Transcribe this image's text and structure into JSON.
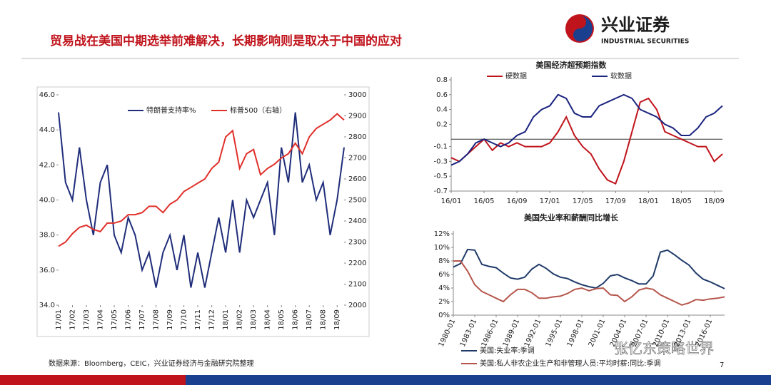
{
  "header": {
    "title": "贸易战在美国中期选举前难解决，长期影响则是取决于中国的应对",
    "logo_cn": "兴业证券",
    "logo_en": "INDUSTRIAL SECURITIES"
  },
  "footer": {
    "source": "数据来源：Bloomberg，CEIC，兴业证券经济与金融研究院整理",
    "watermark": "张忆东策略世界",
    "page": "7"
  },
  "chart_data": [
    {
      "type": "line",
      "categories": [
        "17/01",
        null,
        "17/02",
        null,
        "17/03",
        null,
        "17/04",
        null,
        "17/05",
        null,
        "17/06",
        null,
        "17/07",
        null,
        "17/08",
        null,
        "17/09",
        null,
        "17/10",
        null,
        "17/11",
        null,
        "17/12",
        null,
        "18/01",
        null,
        "18/02",
        null,
        "18/03",
        null,
        "18/04",
        null,
        "18/05",
        null,
        "18/06",
        null,
        "18/07",
        null,
        "18/08",
        null,
        "18/09",
        null
      ],
      "series": [
        {
          "name": "特朗普支持率%",
          "color": "#1f2d7a",
          "values": [
            45,
            41,
            40,
            43,
            40,
            38,
            41,
            42,
            38,
            37,
            39,
            38,
            36,
            37,
            35,
            37,
            38,
            36,
            38,
            35,
            37,
            35,
            37,
            39,
            37,
            40,
            37,
            40,
            39,
            40,
            41,
            38,
            43,
            41,
            45,
            41,
            42,
            40,
            41,
            38,
            40,
            43
          ]
        },
        {
          "name": "标普500（右轴）",
          "color": "#e0302a",
          "axis": "y2",
          "values": [
            2280,
            2300,
            2340,
            2370,
            2380,
            2360,
            2350,
            2390,
            2390,
            2400,
            2430,
            2430,
            2440,
            2470,
            2470,
            2440,
            2480,
            2500,
            2540,
            2560,
            2580,
            2600,
            2650,
            2680,
            2800,
            2830,
            2650,
            2720,
            2740,
            2620,
            2650,
            2670,
            2700,
            2720,
            2770,
            2720,
            2800,
            2840,
            2860,
            2880,
            2910,
            2880
          ]
        }
      ],
      "ylim": [
        34,
        46
      ],
      "yticks": [
        {
          "value": 34,
          "label": "34.0"
        },
        {
          "value": 36,
          "label": "36.0"
        },
        {
          "value": 38,
          "label": "38.0"
        },
        {
          "value": 40,
          "label": "40.0"
        },
        {
          "value": 42,
          "label": "42.0"
        },
        {
          "value": 44,
          "label": "44.0"
        },
        {
          "value": 46,
          "label": "46.0"
        }
      ],
      "y2lim": [
        2000,
        3000
      ],
      "y2ticks": [
        2000,
        2100,
        2200,
        2300,
        2400,
        2500,
        2600,
        2700,
        2800,
        2900,
        3000
      ]
    },
    {
      "type": "line",
      "title": "美国经济超预期指数",
      "categories": [
        "16/01",
        null,
        null,
        null,
        "16/05",
        null,
        null,
        null,
        "16/09",
        null,
        null,
        null,
        "17/01",
        null,
        null,
        null,
        "17/05",
        null,
        null,
        null,
        "17/09",
        null,
        null,
        null,
        "18/01",
        null,
        null,
        null,
        "18/05",
        null,
        null,
        null,
        "18/09",
        null
      ],
      "series": [
        {
          "name": "硬数据",
          "color": "#c0141c",
          "values": [
            -0.25,
            -0.3,
            -0.2,
            -0.1,
            0.0,
            -0.15,
            -0.05,
            -0.1,
            -0.05,
            -0.1,
            -0.1,
            -0.1,
            -0.05,
            0.1,
            0.3,
            0.05,
            -0.1,
            -0.2,
            -0.4,
            -0.55,
            -0.6,
            -0.3,
            0.1,
            0.5,
            0.55,
            0.4,
            0.1,
            0.05,
            0.0,
            -0.05,
            -0.1,
            -0.1,
            -0.3,
            -0.2
          ]
        },
        {
          "name": "软数据",
          "color": "#1a237e",
          "values": [
            -0.35,
            -0.3,
            -0.2,
            -0.05,
            0.0,
            -0.05,
            -0.1,
            -0.05,
            0.05,
            0.1,
            0.3,
            0.4,
            0.45,
            0.6,
            0.55,
            0.35,
            0.3,
            0.3,
            0.45,
            0.5,
            0.55,
            0.6,
            0.55,
            0.4,
            0.35,
            0.3,
            0.2,
            0.15,
            0.05,
            0.05,
            0.15,
            0.3,
            0.35,
            0.45
          ]
        }
      ],
      "ylim": [
        -0.7,
        0.8
      ],
      "yticks": [
        -0.7,
        -0.5,
        -0.3,
        -0.1,
        0.2,
        0.4,
        0.6,
        0.8
      ]
    },
    {
      "type": "line",
      "title": "美国失业率和薪酬同比增长",
      "categories": [
        "1980-01",
        null,
        null,
        "1983-01",
        null,
        null,
        "1986-01",
        null,
        null,
        "1989-01",
        null,
        null,
        "1992-01",
        null,
        null,
        "1995-01",
        null,
        null,
        "1998-01",
        null,
        null,
        "2001-01",
        null,
        null,
        "2004-01",
        null,
        null,
        "2007-01",
        null,
        null,
        "2010-01",
        null,
        null,
        "2013-01",
        null,
        null,
        "2016-01",
        null,
        null
      ],
      "series": [
        {
          "name": "美国:失业率:季调",
          "color": "#1f3a68",
          "values": [
            7.1,
            7.6,
            9.7,
            9.6,
            7.5,
            7.2,
            7.0,
            6.2,
            5.5,
            5.3,
            5.6,
            6.8,
            7.5,
            6.9,
            6.1,
            5.6,
            5.4,
            4.9,
            4.5,
            4.2,
            4.0,
            4.7,
            5.8,
            6.0,
            5.5,
            5.1,
            4.6,
            4.6,
            5.8,
            9.3,
            9.6,
            8.9,
            8.1,
            7.4,
            6.2,
            5.3,
            4.9,
            4.4,
            3.9
          ]
        },
        {
          "name": "美国:私人非农企业生产和非管理人员:平均时薪:同比:季调",
          "color": "#b5564c",
          "values": [
            8.0,
            8.0,
            6.5,
            4.5,
            3.5,
            3.0,
            2.5,
            2.0,
            3.0,
            3.8,
            3.8,
            3.3,
            2.5,
            2.5,
            2.7,
            2.8,
            3.2,
            3.8,
            4.0,
            3.6,
            3.9,
            4.0,
            3.0,
            2.9,
            2.0,
            2.7,
            3.7,
            4.0,
            3.8,
            3.0,
            2.5,
            2.0,
            1.5,
            1.8,
            2.3,
            2.2,
            2.4,
            2.5,
            2.7
          ]
        }
      ],
      "ylim": [
        0,
        12
      ],
      "yticks": [
        {
          "value": 0,
          "label": "0%"
        },
        {
          "value": 2,
          "label": "2%"
        },
        {
          "value": 4,
          "label": "4%"
        },
        {
          "value": 6,
          "label": "6%"
        },
        {
          "value": 8,
          "label": "8%"
        },
        {
          "value": 10,
          "label": "10%"
        },
        {
          "value": 12,
          "label": "12%"
        }
      ]
    }
  ]
}
